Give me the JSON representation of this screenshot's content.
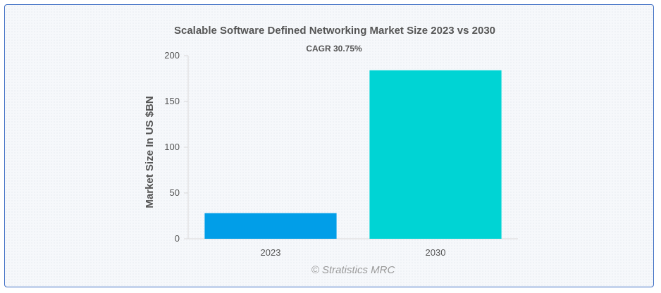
{
  "chart_data": {
    "type": "bar",
    "title": "Scalable Software Defined Networking Market Size 2023 vs 2030",
    "subtitle": "CAGR 30.75%",
    "ylabel": "Market Size In US $BN",
    "xlabel": "",
    "categories": [
      "2023",
      "2030"
    ],
    "values": [
      28,
      184
    ],
    "bar_colors": [
      "#019ee8",
      "#00d4d4"
    ],
    "ylim": [
      0,
      200
    ],
    "yticks": [
      0,
      50,
      100,
      150,
      200
    ],
    "grid": false,
    "legend": "none"
  },
  "watermark": "© Stratistics MRC"
}
